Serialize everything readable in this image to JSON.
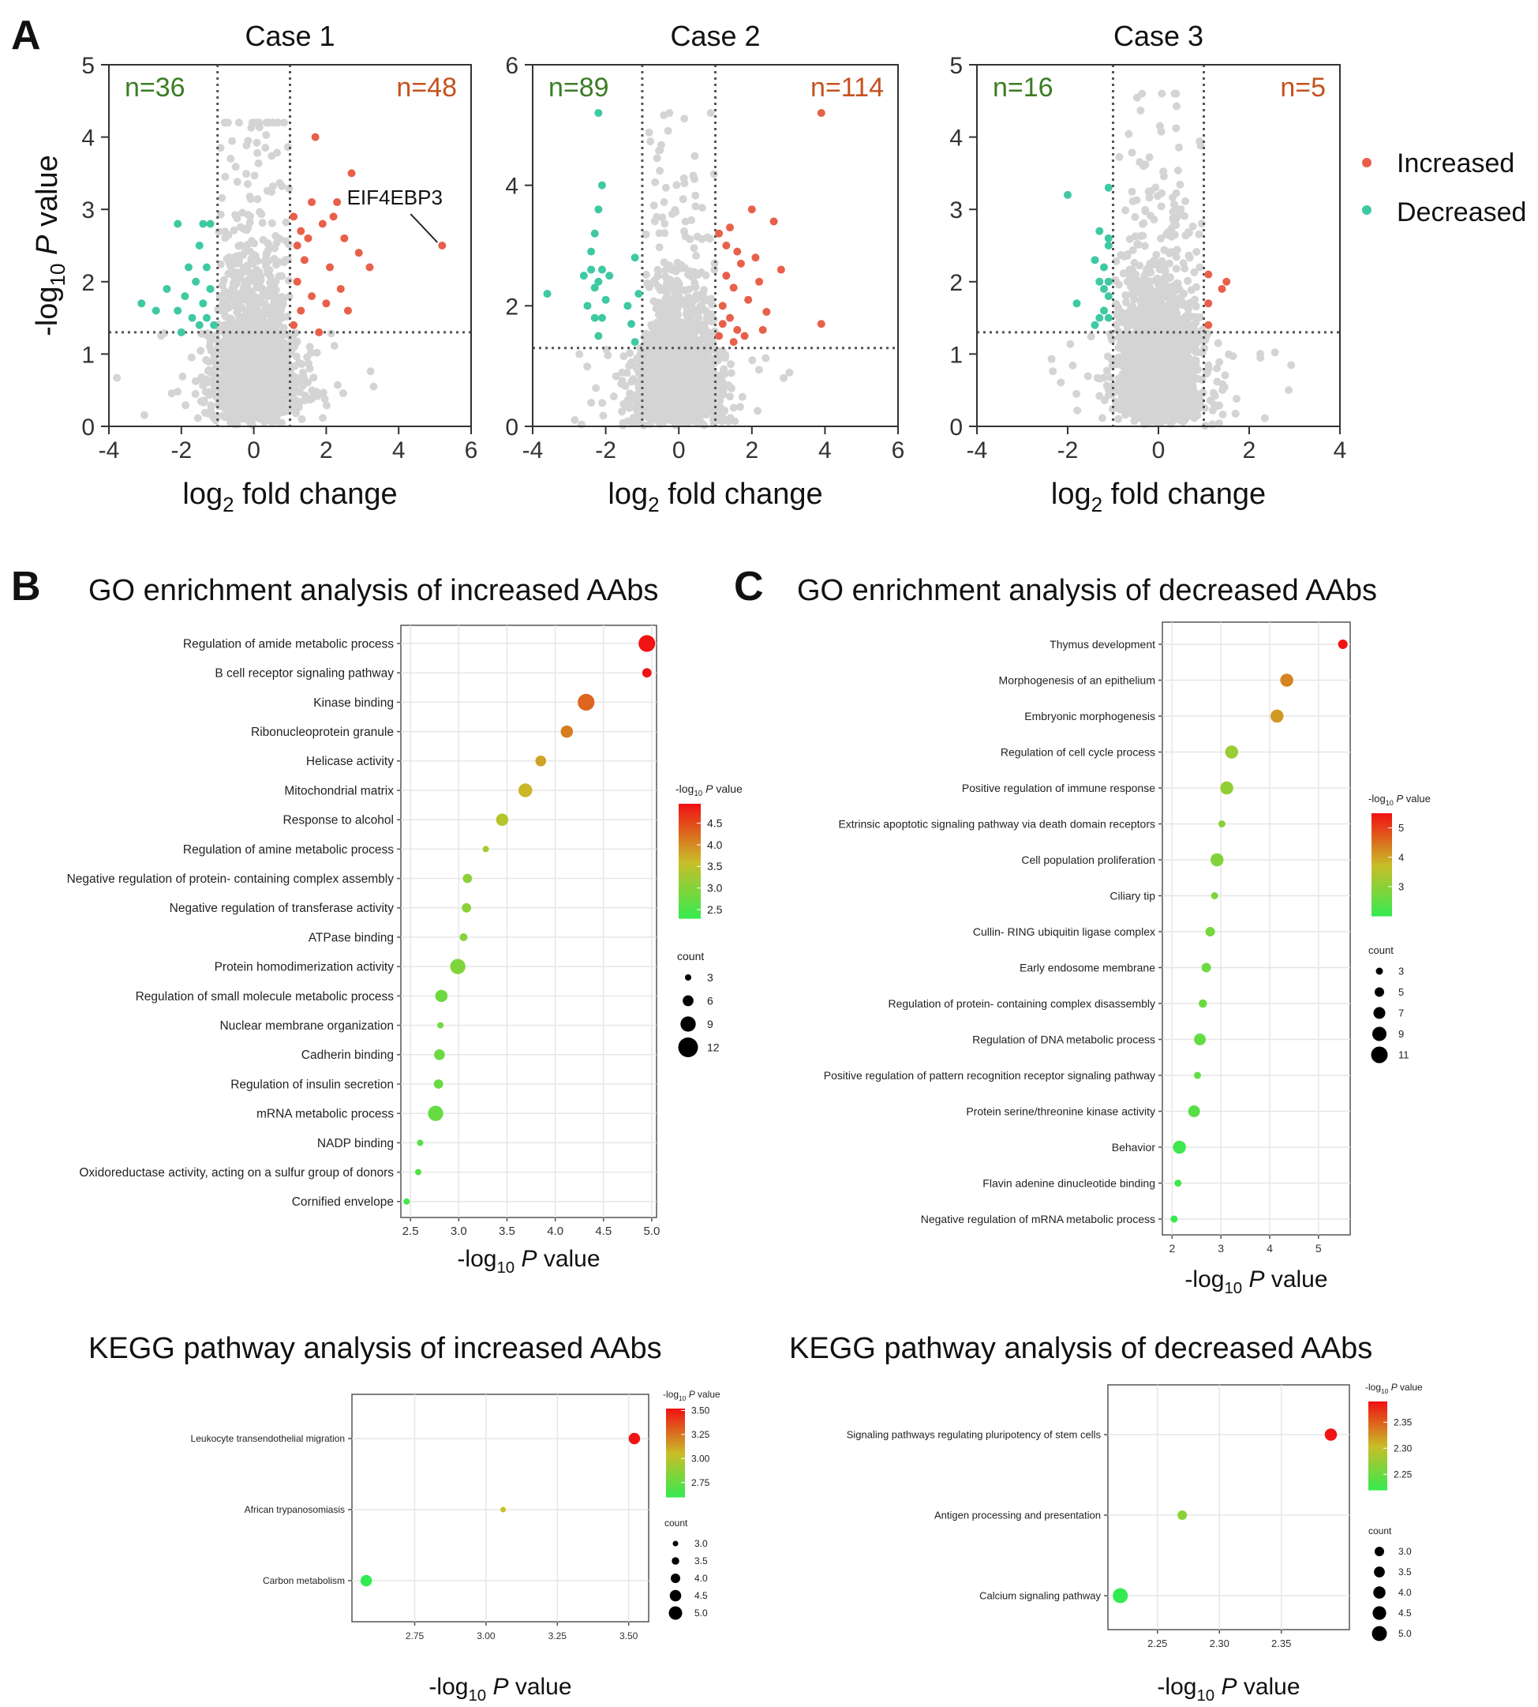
{
  "figure": {
    "panel_letters": [
      "A",
      "B",
      "C"
    ],
    "increased_color": "#e8604a",
    "decreased_color": "#3ec9a3",
    "background_point_color": "#d4d4d4",
    "legend": [
      {
        "label": "Increased",
        "color": "#e8604a"
      },
      {
        "label": "Decreased",
        "color": "#3ec9a3"
      }
    ]
  },
  "chart_data": [
    {
      "id": "volcano-case-1",
      "type": "scatter",
      "title": "Case 1",
      "xlabel_main": "log",
      "xlabel_sub": "2",
      "xlabel_rest": " fold change",
      "ylabel_pre": "-log",
      "ylabel_sub": "10",
      "ylabel_italic": "P",
      "ylabel_rest": " value",
      "xlim": [
        -4,
        6
      ],
      "ylim": [
        0,
        5
      ],
      "xticks": [
        -4,
        -2,
        0,
        2,
        4,
        6
      ],
      "yticks": [
        0,
        1,
        2,
        3,
        4,
        5
      ],
      "fc_thresholds": [
        -1,
        1
      ],
      "p_threshold": 1.3,
      "n_decreased": "n=36",
      "n_increased": "n=48",
      "annotation": {
        "label": "EIF4EBP3",
        "x": 5.2,
        "y": 2.5
      },
      "background_cloud": {
        "x_spread": 0.55,
        "max_y": 4.2
      },
      "increased_points": [
        [
          1.1,
          1.4
        ],
        [
          1.2,
          2.0
        ],
        [
          1.3,
          1.6
        ],
        [
          1.5,
          2.6
        ],
        [
          1.6,
          3.1
        ],
        [
          1.7,
          4.0
        ],
        [
          1.9,
          2.8
        ],
        [
          2.1,
          2.2
        ],
        [
          2.3,
          3.1
        ],
        [
          2.5,
          2.6
        ],
        [
          2.7,
          3.5
        ],
        [
          2.9,
          2.4
        ],
        [
          3.2,
          2.2
        ],
        [
          1.1,
          2.9
        ],
        [
          1.4,
          2.3
        ],
        [
          2.0,
          1.7
        ],
        [
          2.6,
          1.6
        ],
        [
          1.8,
          1.3
        ],
        [
          1.2,
          2.5
        ],
        [
          2.2,
          2.9
        ],
        [
          5.2,
          2.5
        ],
        [
          1.3,
          2.7
        ],
        [
          1.6,
          1.8
        ],
        [
          2.4,
          1.9
        ]
      ],
      "decreased_points": [
        [
          -1.1,
          1.4
        ],
        [
          -1.2,
          1.9
        ],
        [
          -1.3,
          2.2
        ],
        [
          -1.4,
          1.7
        ],
        [
          -1.5,
          2.5
        ],
        [
          -1.6,
          2.0
        ],
        [
          -1.7,
          1.5
        ],
        [
          -1.9,
          1.8
        ],
        [
          -2.1,
          1.6
        ],
        [
          -2.4,
          1.9
        ],
        [
          -2.7,
          1.6
        ],
        [
          -3.1,
          1.7
        ],
        [
          -2.0,
          1.3
        ],
        [
          -1.2,
          2.8
        ],
        [
          -1.4,
          2.8
        ],
        [
          -2.1,
          2.8
        ],
        [
          -1.8,
          2.2
        ],
        [
          -1.5,
          1.4
        ],
        [
          -1.3,
          1.5
        ]
      ]
    },
    {
      "id": "volcano-case-2",
      "type": "scatter",
      "title": "Case 2",
      "xlabel_main": "log",
      "xlabel_sub": "2",
      "xlabel_rest": " fold change",
      "xlim": [
        -4,
        6
      ],
      "ylim": [
        0,
        6
      ],
      "xticks": [
        -4,
        -2,
        0,
        2,
        4,
        6
      ],
      "yticks": [
        0,
        2,
        4,
        6
      ],
      "fc_thresholds": [
        -1,
        1
      ],
      "p_threshold": 1.3,
      "n_decreased": "n=89",
      "n_increased": "n=114",
      "background_cloud": {
        "x_spread": 0.55,
        "max_y": 5.2
      },
      "increased_points": [
        [
          1.1,
          1.5
        ],
        [
          1.2,
          2.0
        ],
        [
          1.3,
          2.5
        ],
        [
          1.4,
          1.8
        ],
        [
          1.5,
          2.3
        ],
        [
          1.6,
          1.6
        ],
        [
          1.7,
          2.7
        ],
        [
          1.9,
          2.1
        ],
        [
          2.0,
          3.6
        ],
        [
          2.2,
          2.4
        ],
        [
          2.4,
          1.9
        ],
        [
          2.6,
          3.4
        ],
        [
          2.8,
          2.6
        ],
        [
          3.9,
          5.2
        ],
        [
          3.9,
          1.7
        ],
        [
          1.1,
          3.2
        ],
        [
          1.3,
          3.0
        ],
        [
          1.5,
          1.4
        ],
        [
          1.8,
          1.5
        ],
        [
          2.1,
          2.8
        ],
        [
          1.2,
          1.7
        ],
        [
          1.6,
          2.9
        ],
        [
          2.3,
          1.6
        ],
        [
          1.4,
          3.3
        ]
      ],
      "decreased_points": [
        [
          -2.2,
          5.2
        ],
        [
          -2.1,
          4.0
        ],
        [
          -2.2,
          3.6
        ],
        [
          -2.3,
          3.2
        ],
        [
          -2.4,
          2.9
        ],
        [
          -2.1,
          2.6
        ],
        [
          -2.3,
          2.3
        ],
        [
          -2.5,
          2.0
        ],
        [
          -2.1,
          1.8
        ],
        [
          -2.2,
          1.5
        ],
        [
          -1.9,
          2.5
        ],
        [
          -2.6,
          2.5
        ],
        [
          -3.6,
          2.2
        ],
        [
          -1.2,
          2.8
        ],
        [
          -1.1,
          2.2
        ],
        [
          -1.3,
          1.7
        ],
        [
          -1.4,
          2.0
        ],
        [
          -1.2,
          1.4
        ],
        [
          -2.4,
          2.6
        ],
        [
          -2.0,
          2.1
        ],
        [
          -2.3,
          1.8
        ],
        [
          -2.2,
          2.4
        ]
      ]
    },
    {
      "id": "volcano-case-3",
      "type": "scatter",
      "title": "Case 3",
      "xlabel_main": "log",
      "xlabel_sub": "2",
      "xlabel_rest": " fold change",
      "xlim": [
        -4,
        4
      ],
      "ylim": [
        0,
        5
      ],
      "xticks": [
        -4,
        -2,
        0,
        2,
        4
      ],
      "yticks": [
        0,
        1,
        2,
        3,
        4,
        5
      ],
      "fc_thresholds": [
        -1,
        1
      ],
      "p_threshold": 1.3,
      "n_decreased": "n=16",
      "n_increased": "n=5",
      "background_cloud": {
        "x_spread": 0.45,
        "max_y": 4.6
      },
      "increased_points": [
        [
          1.1,
          2.1
        ],
        [
          1.1,
          1.7
        ],
        [
          1.1,
          1.4
        ],
        [
          1.5,
          2.0
        ],
        [
          1.4,
          1.9
        ]
      ],
      "decreased_points": [
        [
          -2.0,
          3.2
        ],
        [
          -1.1,
          3.3
        ],
        [
          -1.3,
          2.7
        ],
        [
          -1.1,
          2.5
        ],
        [
          -1.2,
          2.2
        ],
        [
          -1.3,
          2.0
        ],
        [
          -1.1,
          1.8
        ],
        [
          -1.2,
          1.6
        ],
        [
          -1.8,
          1.7
        ],
        [
          -1.4,
          1.4
        ],
        [
          -1.1,
          2.0
        ],
        [
          -1.3,
          1.5
        ],
        [
          -1.2,
          1.9
        ],
        [
          -1.1,
          1.5
        ],
        [
          -1.4,
          2.3
        ],
        [
          -1.1,
          2.6
        ]
      ]
    },
    {
      "id": "go-increased",
      "type": "scatter",
      "subtype": "dotplot",
      "title": "GO enrichment analysis of increased AAbs",
      "xlabel_pre": "-log",
      "xlabel_sub": "10",
      "xlabel_italic": "P",
      "xlabel_rest": " value",
      "xlim": [
        2.4,
        5.05
      ],
      "xticks": [
        "2.5",
        "3.0",
        "3.5",
        "4.0",
        "4.5",
        "5.0"
      ],
      "color_range": [
        2.3,
        4.95
      ],
      "colorbar_title_pre": "-log",
      "colorbar_title_sub": "10",
      "colorbar_title_italic": "P",
      "colorbar_title_rest": " value",
      "colorbar_ticks": [
        "4.5",
        "4.0",
        "3.5",
        "3.0",
        "2.5"
      ],
      "size_legend_title": "count",
      "size_legend": [
        "3",
        "6",
        "9",
        "12"
      ],
      "size_max": 12,
      "categories": [
        "Regulation of amide metabolic process",
        "B cell receptor signaling pathway",
        "Kinase binding",
        "Ribonucleoprotein granule",
        "Helicase activity",
        "Mitochondrial matrix",
        "Response to alcohol",
        "Regulation of amine metabolic process",
        "Negative regulation of protein- containing complex assembly",
        "Negative regulation of transferase activity",
        "ATPase binding",
        "Protein homodimerization activity",
        "Regulation of small molecule metabolic process",
        "Nuclear membrane organization",
        "Cadherin binding",
        "Regulation of insulin secretion",
        "mRNA metabolic process",
        "NADP binding",
        "Oxidoreductase activity, acting on a sulfur group of donors",
        "Cornified envelope"
      ],
      "values": [
        4.95,
        4.95,
        4.32,
        4.12,
        3.85,
        3.69,
        3.45,
        3.28,
        3.09,
        3.08,
        3.05,
        2.99,
        2.82,
        2.81,
        2.8,
        2.79,
        2.76,
        2.6,
        2.58,
        2.46
      ],
      "counts": [
        10,
        5,
        10,
        7,
        6,
        8,
        7,
        3,
        5,
        5,
        4,
        9,
        7,
        3,
        6,
        5,
        9,
        3,
        3,
        3
      ]
    },
    {
      "id": "go-decreased",
      "type": "scatter",
      "subtype": "dotplot",
      "title": "GO enrichment analysis of decreased AAbs",
      "xlabel_pre": "-log",
      "xlabel_sub": "10",
      "xlabel_italic": "P",
      "xlabel_rest": " value",
      "xlim": [
        1.8,
        5.65
      ],
      "xticks": [
        "2",
        "3",
        "4",
        "5"
      ],
      "color_range": [
        2.0,
        5.5
      ],
      "colorbar_title_pre": "-log",
      "colorbar_title_sub": "10",
      "colorbar_title_italic": "P",
      "colorbar_title_rest": " value",
      "colorbar_ticks": [
        "5",
        "4",
        "3"
      ],
      "size_legend_title": "count",
      "size_legend": [
        "3",
        "5",
        "7",
        "9",
        "11"
      ],
      "size_max": 11,
      "categories": [
        "Thymus development",
        "Morphogenesis of an epithelium",
        "Embryonic morphogenesis",
        "Regulation of cell cycle process",
        "Positive regulation of immune response",
        "Extrinsic apoptotic signaling pathway via death domain receptors",
        "Cell population proliferation",
        "Ciliary tip",
        "Cullin- RING ubiquitin ligase complex",
        "Early endosome membrane",
        "Regulation of protein- containing complex disassembly",
        "Regulation of DNA metabolic process",
        "Positive regulation of pattern recognition receptor signaling pathway",
        "Protein serine/threonine kinase activity",
        "Behavior",
        "Flavin adenine dinucleotide binding",
        "Negative regulation of mRNA metabolic process"
      ],
      "values": [
        5.5,
        4.35,
        4.15,
        3.22,
        3.12,
        3.02,
        2.92,
        2.87,
        2.78,
        2.7,
        2.63,
        2.57,
        2.52,
        2.45,
        2.15,
        2.12,
        2.04
      ],
      "counts": [
        5,
        8,
        8,
        8,
        8,
        3,
        8,
        3,
        5,
        5,
        4,
        7,
        3,
        7,
        8,
        3,
        3
      ]
    },
    {
      "id": "kegg-increased",
      "type": "scatter",
      "subtype": "dotplot",
      "title": "KEGG pathway analysis of increased AAbs",
      "xlabel_pre": "-log",
      "xlabel_sub": "10",
      "xlabel_italic": "P",
      "xlabel_rest": " value",
      "xlim": [
        2.53,
        3.57
      ],
      "xticks": [
        "2.75",
        "3.00",
        "3.25",
        "3.50"
      ],
      "color_range": [
        2.6,
        3.52
      ],
      "colorbar_title_pre": "-log",
      "colorbar_title_sub": "10",
      "colorbar_title_italic": "P",
      "colorbar_title_rest": " value",
      "colorbar_ticks": [
        "3.50",
        "3.25",
        "3.00",
        "2.75"
      ],
      "size_legend_title": "count",
      "size_legend": [
        "3.0",
        "3.5",
        "4.0",
        "4.5",
        "5.0"
      ],
      "size_max": 5,
      "categories": [
        "Leukocyte transendothelial migration",
        "African trypanosomiasis",
        "Carbon metabolism"
      ],
      "values": [
        3.52,
        3.06,
        2.58
      ],
      "counts": [
        4.5,
        3,
        4.5
      ]
    },
    {
      "id": "kegg-decreased",
      "type": "scatter",
      "subtype": "dotplot",
      "title": "KEGG pathway analysis of decreased AAbs",
      "xlabel_pre": "-log",
      "xlabel_sub": "10",
      "xlabel_italic": "P",
      "xlabel_rest": " value",
      "xlim": [
        2.21,
        2.405
      ],
      "xticks": [
        "2.25",
        "2.30",
        "2.35"
      ],
      "color_range": [
        2.22,
        2.39
      ],
      "colorbar_title_pre": "-log",
      "colorbar_title_sub": "10",
      "colorbar_title_italic": "P",
      "colorbar_title_rest": " value",
      "colorbar_ticks": [
        "2.35",
        "2.30",
        "2.25"
      ],
      "size_legend_title": "count",
      "size_legend": [
        "3.0",
        "3.5",
        "4.0",
        "4.5",
        "5.0"
      ],
      "size_max": 5,
      "categories": [
        "Signaling pathways regulating pluripotency of stem cells",
        "Antigen processing and presentation",
        "Calcium signaling pathway"
      ],
      "values": [
        2.39,
        2.27,
        2.22
      ],
      "counts": [
        4,
        3,
        5
      ]
    }
  ]
}
